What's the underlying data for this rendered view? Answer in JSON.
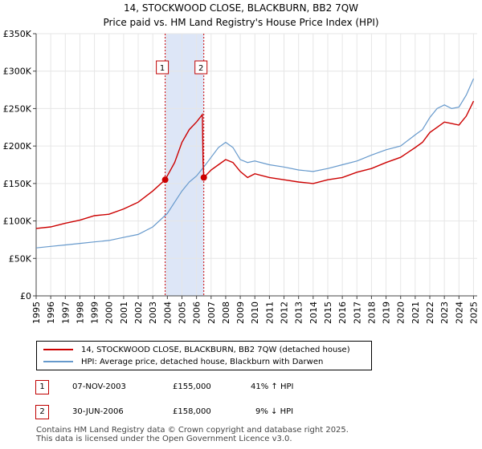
{
  "title_line1": "14, STOCKWOOD CLOSE, BLACKBURN, BB2 7QW",
  "title_line2": "Price paid vs. HM Land Registry's House Price Index (HPI)",
  "colors": {
    "property": "#cc0000",
    "hpi": "#6699cc",
    "shade": "#dde6f7",
    "grid": "#e6e6e6",
    "marker": "#c00000"
  },
  "legend": {
    "property_label": "14, STOCKWOOD CLOSE, BLACKBURN, BB2 7QW (detached house)",
    "hpi_label": "HPI: Average price, detached house, Blackburn with Darwen"
  },
  "transactions": [
    {
      "id": "1",
      "date": "07-NOV-2003",
      "price": "£155,000",
      "hpi_change": "41% ↑ HPI"
    },
    {
      "id": "2",
      "date": "30-JUN-2006",
      "price": "£158,000",
      "hpi_change": "9% ↓ HPI"
    }
  ],
  "footer_line1": "Contains HM Land Registry data © Crown copyright and database right 2025.",
  "footer_line2": "This data is licensed under the Open Government Licence v3.0.",
  "chart_data": {
    "type": "line",
    "xlim": [
      1995,
      2025.25
    ],
    "ylim": [
      0,
      350000
    ],
    "x_ticks": [
      "1995",
      "1996",
      "1997",
      "1998",
      "1999",
      "2000",
      "2001",
      "2002",
      "2003",
      "2004",
      "2005",
      "2006",
      "2007",
      "2008",
      "2009",
      "2010",
      "2011",
      "2012",
      "2013",
      "2014",
      "2015",
      "2016",
      "2017",
      "2018",
      "2019",
      "2020",
      "2021",
      "2022",
      "2023",
      "2024",
      "2025"
    ],
    "y_ticks": [
      {
        "value": 0,
        "label": "£0"
      },
      {
        "value": 50000,
        "label": "£50K"
      },
      {
        "value": 100000,
        "label": "£100K"
      },
      {
        "value": 150000,
        "label": "£150K"
      },
      {
        "value": 200000,
        "label": "£200K"
      },
      {
        "value": 250000,
        "label": "£250K"
      },
      {
        "value": 300000,
        "label": "£300K"
      },
      {
        "value": 350000,
        "label": "£350K"
      }
    ],
    "shaded_range": [
      2003.85,
      2006.5
    ],
    "markers": [
      {
        "label": "1",
        "x": 2003.85,
        "y": 155000
      },
      {
        "label": "2",
        "x": 2006.5,
        "y": 158000
      }
    ],
    "series": [
      {
        "name": "14, STOCKWOOD CLOSE, BLACKBURN, BB2 7QW (detached house)",
        "points": [
          [
            1995,
            90000
          ],
          [
            1996,
            92000
          ],
          [
            1997,
            97000
          ],
          [
            1998,
            101000
          ],
          [
            1999,
            107000
          ],
          [
            2000,
            109000
          ],
          [
            2001,
            116000
          ],
          [
            2002,
            125000
          ],
          [
            2003,
            140000
          ],
          [
            2003.85,
            155000
          ],
          [
            2004.5,
            178000
          ],
          [
            2005,
            205000
          ],
          [
            2005.5,
            222000
          ],
          [
            2006,
            232000
          ],
          [
            2006.4,
            242000
          ],
          [
            2006.45,
            178000
          ],
          [
            2006.5,
            158000
          ],
          [
            2007,
            168000
          ],
          [
            2007.5,
            175000
          ],
          [
            2008,
            182000
          ],
          [
            2008.5,
            178000
          ],
          [
            2009,
            166000
          ],
          [
            2009.5,
            158000
          ],
          [
            2010,
            163000
          ],
          [
            2011,
            158000
          ],
          [
            2012,
            155000
          ],
          [
            2013,
            152000
          ],
          [
            2014,
            150000
          ],
          [
            2015,
            155000
          ],
          [
            2016,
            158000
          ],
          [
            2017,
            165000
          ],
          [
            2018,
            170000
          ],
          [
            2019,
            178000
          ],
          [
            2020,
            185000
          ],
          [
            2021,
            198000
          ],
          [
            2021.5,
            205000
          ],
          [
            2022,
            218000
          ],
          [
            2022.5,
            225000
          ],
          [
            2023,
            232000
          ],
          [
            2023.5,
            230000
          ],
          [
            2024,
            228000
          ],
          [
            2024.5,
            240000
          ],
          [
            2025,
            260000
          ]
        ]
      },
      {
        "name": "HPI: Average price, detached house, Blackburn with Darwen",
        "points": [
          [
            1995,
            64000
          ],
          [
            1996,
            66000
          ],
          [
            1997,
            68000
          ],
          [
            1998,
            70000
          ],
          [
            1999,
            72000
          ],
          [
            2000,
            74000
          ],
          [
            2001,
            78000
          ],
          [
            2002,
            82000
          ],
          [
            2003,
            92000
          ],
          [
            2004,
            110000
          ],
          [
            2004.5,
            125000
          ],
          [
            2005,
            140000
          ],
          [
            2005.5,
            152000
          ],
          [
            2006,
            160000
          ],
          [
            2006.5,
            172000
          ],
          [
            2007,
            185000
          ],
          [
            2007.5,
            198000
          ],
          [
            2008,
            205000
          ],
          [
            2008.5,
            198000
          ],
          [
            2009,
            182000
          ],
          [
            2009.5,
            178000
          ],
          [
            2010,
            180000
          ],
          [
            2011,
            175000
          ],
          [
            2012,
            172000
          ],
          [
            2013,
            168000
          ],
          [
            2014,
            166000
          ],
          [
            2015,
            170000
          ],
          [
            2016,
            175000
          ],
          [
            2017,
            180000
          ],
          [
            2018,
            188000
          ],
          [
            2019,
            195000
          ],
          [
            2020,
            200000
          ],
          [
            2021,
            215000
          ],
          [
            2021.5,
            222000
          ],
          [
            2022,
            238000
          ],
          [
            2022.5,
            250000
          ],
          [
            2023,
            255000
          ],
          [
            2023.5,
            250000
          ],
          [
            2024,
            252000
          ],
          [
            2024.5,
            268000
          ],
          [
            2025,
            290000
          ]
        ]
      }
    ]
  }
}
